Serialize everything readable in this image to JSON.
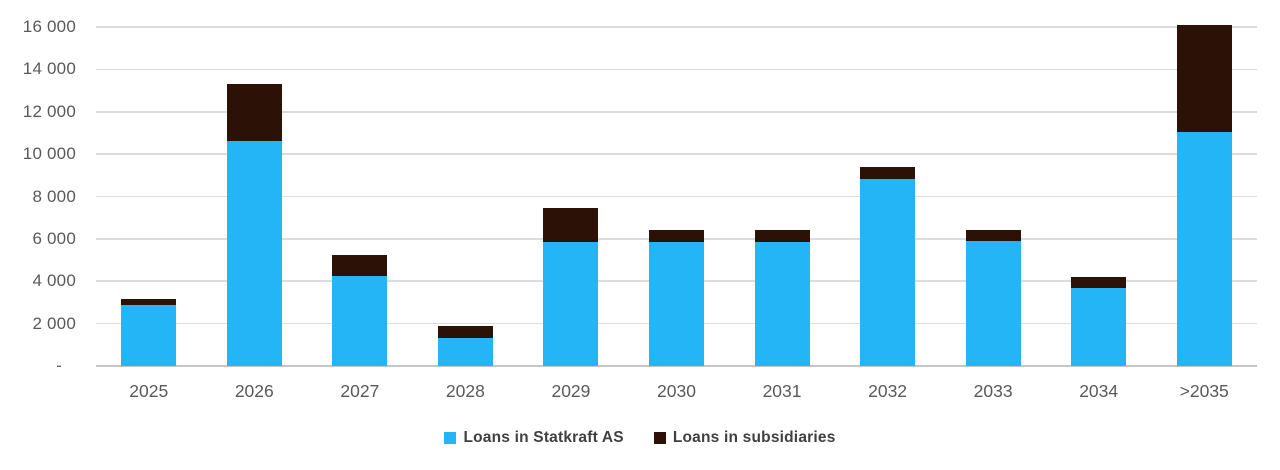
{
  "chart_data": {
    "type": "bar",
    "stacked": true,
    "title": "",
    "xlabel": "",
    "ylabel": "",
    "categories": [
      "2025",
      "2026",
      "2027",
      "2028",
      "2029",
      "2030",
      "2031",
      "2032",
      "2033",
      "2034",
      ">2035"
    ],
    "series": [
      {
        "name": "Loans in Statkraft AS",
        "color": "#23B5F6",
        "values": [
          2900,
          10600,
          4250,
          1300,
          5850,
          5850,
          5850,
          8850,
          5900,
          3700,
          11050
        ]
      },
      {
        "name": "Loans in subsidiaries",
        "color": "#2C1206",
        "values": [
          250,
          2700,
          1000,
          600,
          1600,
          550,
          550,
          550,
          500,
          500,
          5050
        ]
      }
    ],
    "totals": [
      3150,
      13300,
      5250,
      1900,
      7450,
      6400,
      6400,
      9400,
      6400,
      4200,
      16100
    ],
    "ylim": [
      0,
      16000
    ],
    "yticks": [
      {
        "value": 16000,
        "label": "16 000"
      },
      {
        "value": 14000,
        "label": "14 000"
      },
      {
        "value": 12000,
        "label": "12 000"
      },
      {
        "value": 10000,
        "label": "10 000"
      },
      {
        "value": 8000,
        "label": "8 000"
      },
      {
        "value": 6000,
        "label": "6 000"
      },
      {
        "value": 4000,
        "label": "4 000"
      },
      {
        "value": 2000,
        "label": "2 000"
      },
      {
        "value": 0,
        "label": "-"
      }
    ],
    "grid": "horizontal",
    "legend_position": "bottom",
    "colors": {
      "background": "#FFFFFF",
      "gridline": "#DCDCDC",
      "axis_line": "#C6C6C6",
      "tick_text": "#595959",
      "legend_text": "#404040"
    }
  }
}
